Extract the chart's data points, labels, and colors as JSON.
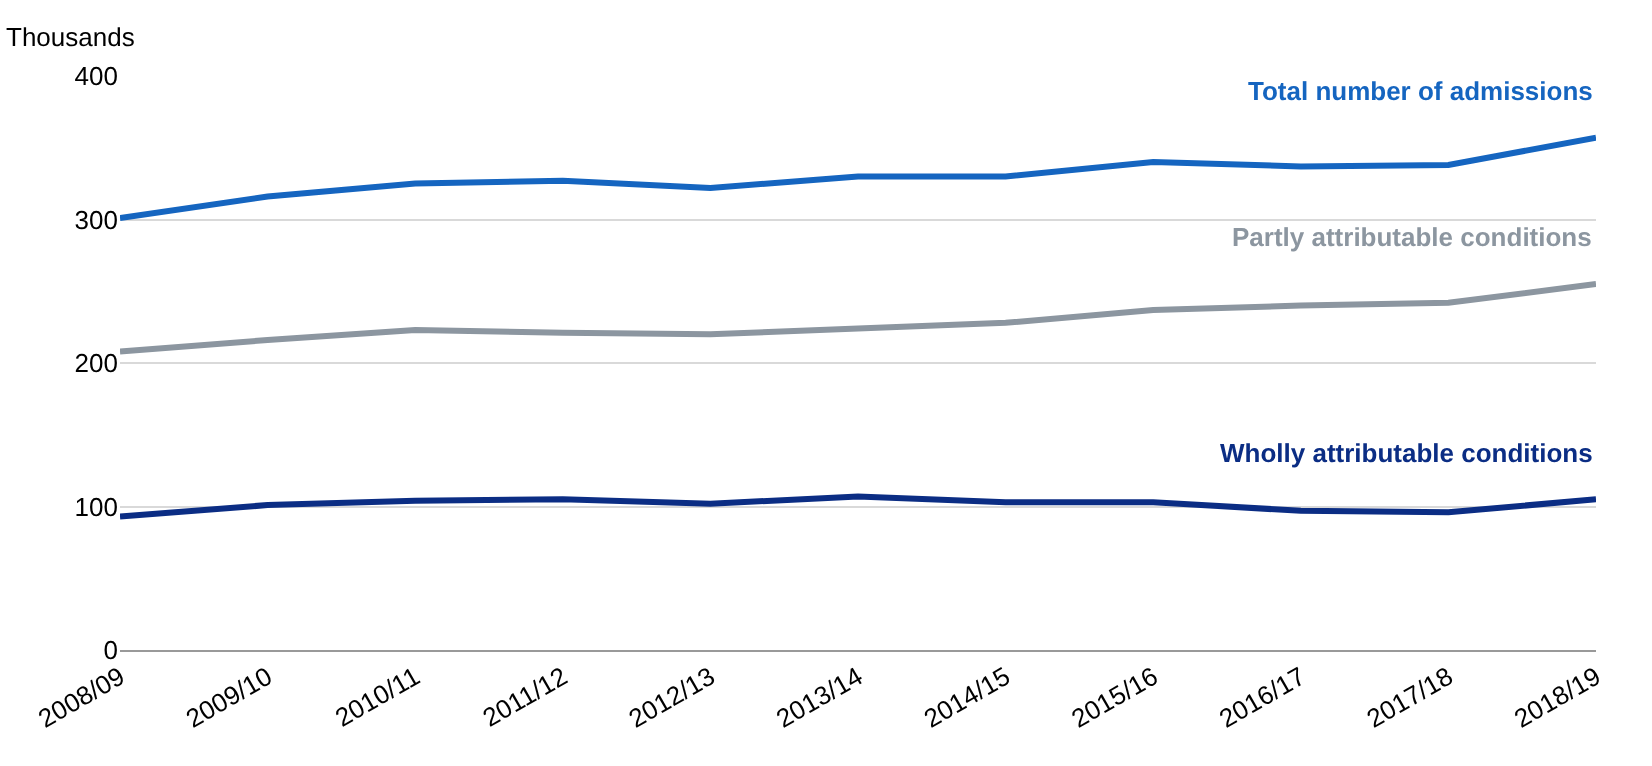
{
  "chart_data": {
    "type": "line",
    "ylabel": "Thousands",
    "categories": [
      "2008/09",
      "2009/10",
      "2010/11",
      "2011/12",
      "2012/13",
      "2013/14",
      "2014/15",
      "2015/16",
      "2016/17",
      "2017/18",
      "2018/19"
    ],
    "series": [
      {
        "name": "Total number of admissions",
        "color": "#1565c0",
        "values": [
          301,
          316,
          325,
          327,
          322,
          330,
          330,
          340,
          337,
          338,
          357
        ]
      },
      {
        "name": "Partly attributable conditions",
        "color": "#8c96a0",
        "values": [
          208,
          216,
          223,
          221,
          220,
          224,
          228,
          237,
          240,
          242,
          255
        ]
      },
      {
        "name": "Wholly attributable conditions",
        "color": "#0b2d84",
        "values": [
          93,
          101,
          104,
          105,
          102,
          107,
          103,
          103,
          97,
          96,
          105
        ]
      }
    ],
    "ylim": [
      0,
      400
    ],
    "yticks": [
      0,
      100,
      200,
      300,
      400
    ],
    "grid": "y",
    "legend": false,
    "marker": "none",
    "line_style": "solid"
  }
}
